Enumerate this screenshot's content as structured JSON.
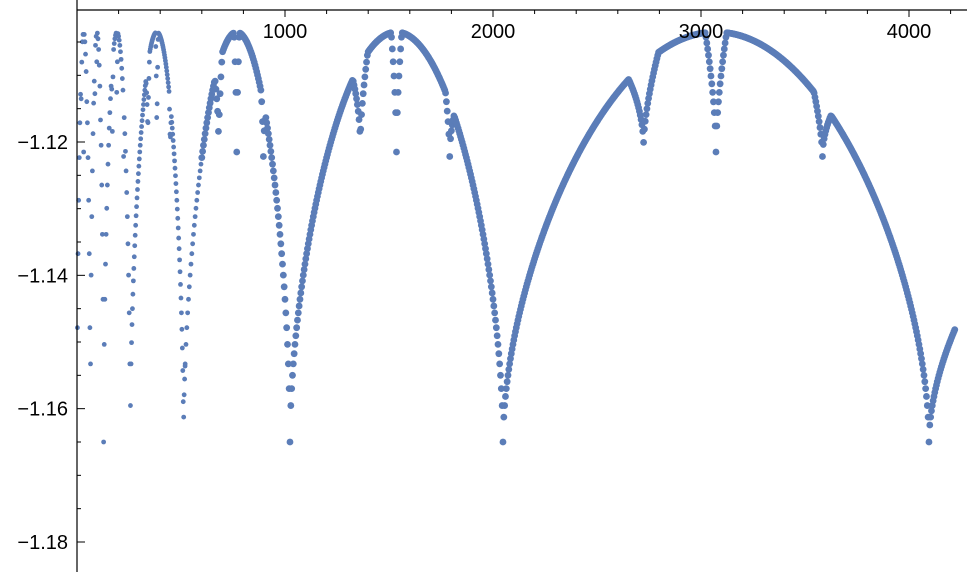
{
  "chart_data": {
    "type": "scatter",
    "title": "",
    "xlabel": "",
    "ylabel": "",
    "xlim": [
      -30,
      4260
    ],
    "ylim": [
      -1.184,
      -1.1002
    ],
    "x_ticks": [
      {
        "value": 1000,
        "label": "1000"
      },
      {
        "value": 2000,
        "label": "2000"
      },
      {
        "value": 3000,
        "label": "3000"
      },
      {
        "value": 4000,
        "label": "4000"
      }
    ],
    "y_ticks": [
      {
        "value": -1.12,
        "label": "−1.12"
      },
      {
        "value": -1.14,
        "label": "−1.14"
      },
      {
        "value": -1.16,
        "label": "−1.16"
      },
      {
        "value": -1.18,
        "label": "−1.18"
      }
    ],
    "grid": false,
    "marker_color": "#5b7db8",
    "series": [
      {
        "description_points": [
          [
            2,
            -1.166
          ],
          [
            5,
            -1.169
          ],
          [
            16,
            -1.12
          ],
          [
            24,
            -1.105
          ],
          [
            64,
            -1.104
          ],
          [
            124,
            -1.104
          ],
          [
            257,
            -1.165
          ],
          [
            360,
            -1.1035
          ],
          [
            400,
            -1.117
          ],
          [
            512,
            -1.165
          ],
          [
            640,
            -1.108
          ],
          [
            690,
            -1.1035
          ],
          [
            770,
            -1.1215
          ],
          [
            800,
            -1.117
          ],
          [
            910,
            -1.131
          ],
          [
            1024,
            -1.165
          ],
          [
            1200,
            -1.109
          ],
          [
            1280,
            -1.11
          ],
          [
            1380,
            -1.1035
          ],
          [
            1550,
            -1.121
          ],
          [
            1600,
            -1.117
          ],
          [
            1800,
            -1.13
          ],
          [
            2048,
            -1.165
          ],
          [
            2500,
            -1.108
          ],
          [
            2600,
            -1.109
          ],
          [
            2730,
            -1.1035
          ],
          [
            3070,
            -1.121
          ],
          [
            3200,
            -1.117
          ],
          [
            3600,
            -1.131
          ],
          [
            4096,
            -1.165
          ],
          [
            4220,
            -1.1505
          ]
        ]
      }
    ]
  }
}
